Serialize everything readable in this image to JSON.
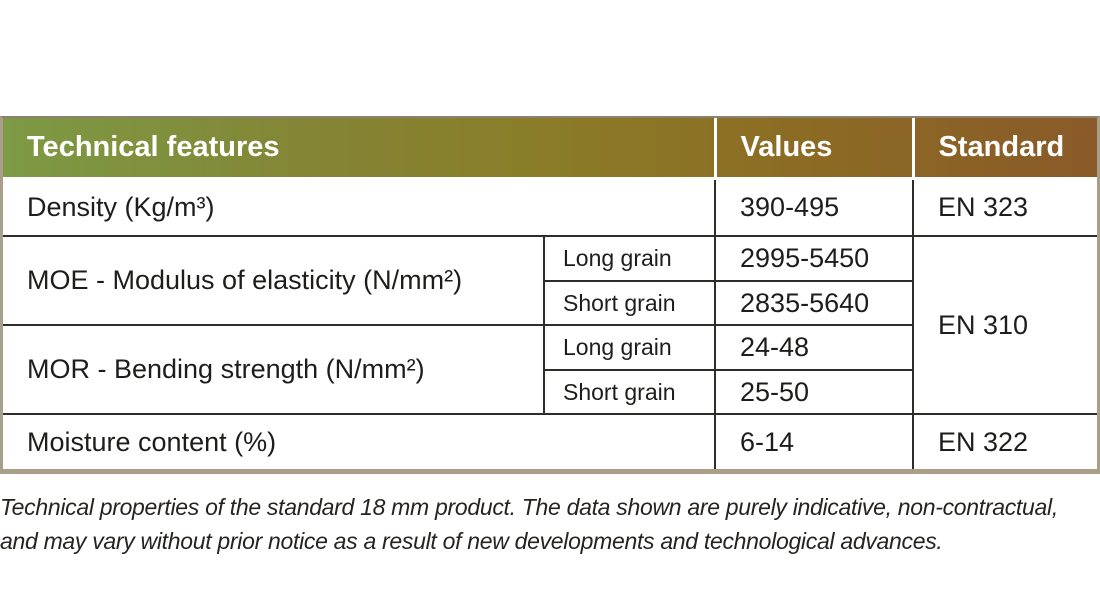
{
  "colors": {
    "header_gradient_left": "#7d9a44",
    "header_gradient_mid": "#8a7c28",
    "header_gradient_right": "#8a5a28",
    "outer_border": "#a99e88",
    "top_border": "#8a8173",
    "inner_line": "#2f2d2a",
    "header_text": "#ffffff",
    "body_text": "#1e1d1b"
  },
  "header": {
    "feature": "Technical features",
    "values": "Values",
    "standard": "Standard"
  },
  "rows": {
    "density": {
      "label": "Density (Kg/m³)",
      "value": "390-495",
      "standard": "EN 323"
    },
    "moe": {
      "label": "MOE - Modulus of elasticity (N/mm²)",
      "long": {
        "label": "Long grain",
        "value": "2995-5450"
      },
      "short": {
        "label": "Short grain",
        "value": "2835-5640"
      }
    },
    "mor": {
      "label": "MOR - Bending strength (N/mm²)",
      "long": {
        "label": "Long grain",
        "value": "24-48"
      },
      "short": {
        "label": "Short grain",
        "value": "25-50"
      }
    },
    "bending_standard": "EN 310",
    "moisture": {
      "label": "Moisture content (%)",
      "value": "6-14",
      "standard": "EN 322"
    }
  },
  "caption": {
    "line1": "Technical properties of the standard 18 mm product. The data shown are purely indicative, non-contractual,",
    "line2": "and may vary without prior notice as a result of new developments and technological advances."
  }
}
